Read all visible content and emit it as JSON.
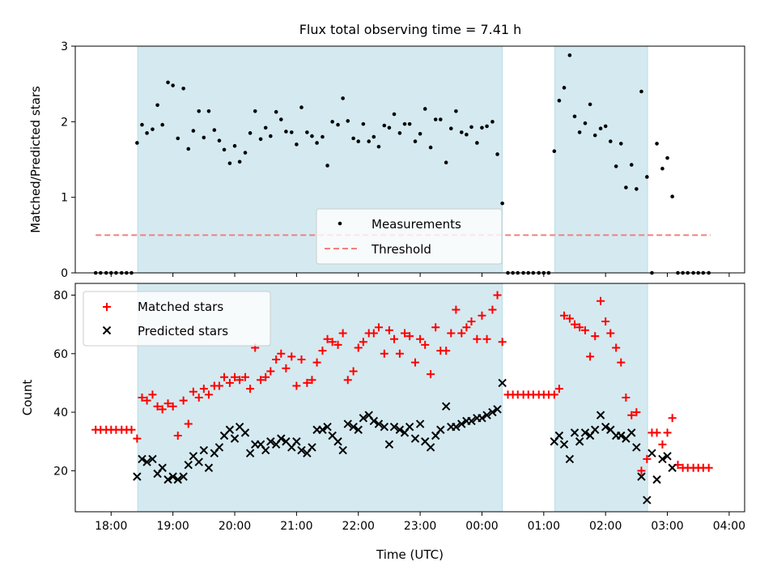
{
  "title": "Flux total observing time = 7.41 h",
  "colors": {
    "shade": "#d4eaf0",
    "shade_edge": "#b8dde6",
    "matched": "#ff0000",
    "predicted": "#000000",
    "threshold": "#f08080",
    "measurement": "#000000"
  },
  "chart_data": [
    {
      "type": "scatter",
      "ylabel": "Matched/Predicted stars",
      "ylim": [
        0,
        3
      ],
      "yticks": [
        0,
        1,
        2,
        3
      ],
      "xlim": [
        17.42,
        28.25
      ],
      "xticks": [
        18,
        19,
        20,
        21,
        22,
        23,
        24,
        25,
        26,
        27,
        28
      ],
      "shaded_regions": [
        [
          18.43,
          24.33
        ],
        [
          25.18,
          26.68
        ]
      ],
      "legend": {
        "position": "bottom-center",
        "entries": [
          "Measurements",
          "Threshold"
        ]
      },
      "threshold": {
        "name": "Threshold",
        "value": 0.5,
        "x_range": [
          17.75,
          27.7
        ]
      },
      "series": [
        {
          "name": "Measurements",
          "x": [
            17.75,
            17.83,
            17.92,
            18.0,
            18.08,
            18.17,
            18.25,
            18.33,
            18.42,
            18.5,
            18.58,
            18.67,
            18.75,
            18.83,
            18.92,
            19.0,
            19.08,
            19.17,
            19.25,
            19.33,
            19.42,
            19.5,
            19.58,
            19.67,
            19.75,
            19.83,
            19.92,
            20.0,
            20.08,
            20.17,
            20.25,
            20.33,
            20.42,
            20.5,
            20.58,
            20.67,
            20.75,
            20.83,
            20.92,
            21.0,
            21.08,
            21.17,
            21.25,
            21.33,
            21.42,
            21.5,
            21.58,
            21.67,
            21.75,
            21.83,
            21.92,
            22.0,
            22.08,
            22.17,
            22.25,
            22.33,
            22.42,
            22.5,
            22.58,
            22.67,
            22.75,
            22.83,
            22.92,
            23.0,
            23.08,
            23.17,
            23.25,
            23.33,
            23.42,
            23.5,
            23.58,
            23.67,
            23.75,
            23.83,
            23.92,
            24.0,
            24.08,
            24.17,
            24.25,
            24.33,
            24.42,
            24.5,
            24.58,
            24.67,
            24.75,
            24.83,
            24.92,
            25.0,
            25.08,
            25.17,
            25.25,
            25.33,
            25.42,
            25.5,
            25.58,
            25.67,
            25.75,
            25.83,
            25.92,
            26.0,
            26.08,
            26.17,
            26.25,
            26.33,
            26.42,
            26.5,
            26.58,
            26.67,
            26.75,
            26.83,
            26.92,
            27.0,
            27.08,
            27.17,
            27.25,
            27.33,
            27.42,
            27.5,
            27.58,
            27.67
          ],
          "y": [
            0,
            0,
            0,
            0,
            0,
            0,
            0,
            0,
            1.72,
            1.96,
            1.85,
            1.9,
            2.22,
            1.96,
            2.52,
            2.48,
            1.78,
            2.44,
            1.64,
            1.88,
            2.14,
            1.79,
            2.14,
            1.89,
            1.75,
            1.63,
            1.45,
            1.68,
            1.47,
            1.59,
            1.85,
            2.14,
            1.77,
            1.92,
            1.81,
            2.13,
            2.03,
            1.87,
            1.86,
            1.7,
            2.19,
            1.86,
            1.81,
            1.72,
            1.8,
            1.42,
            2.0,
            1.96,
            2.31,
            2.01,
            1.78,
            1.74,
            1.97,
            1.74,
            1.8,
            1.67,
            1.95,
            1.92,
            2.1,
            1.85,
            1.97,
            1.97,
            1.74,
            1.84,
            2.17,
            1.66,
            2.03,
            2.03,
            1.46,
            1.91,
            2.14,
            1.86,
            1.83,
            1.93,
            1.72,
            1.92,
            1.94,
            2.0,
            1.57,
            0.92,
            0,
            0,
            0,
            0,
            0,
            0,
            0,
            0,
            0,
            1.61,
            2.28,
            2.45,
            2.88,
            2.07,
            1.86,
            1.98,
            2.23,
            1.82,
            1.91,
            1.94,
            1.74,
            1.41,
            1.71,
            1.13,
            1.43,
            1.11,
            2.4,
            1.27,
            0,
            1.71,
            1.38,
            1.52,
            1.01,
            0,
            0,
            0,
            0,
            0,
            0,
            0
          ]
        }
      ]
    },
    {
      "type": "scatter",
      "xlabel": "Time (UTC)",
      "ylabel": "Count",
      "ylim": [
        6,
        84
      ],
      "yticks": [
        20,
        40,
        60,
        80
      ],
      "xlim": [
        17.42,
        28.25
      ],
      "xticks": [
        18,
        19,
        20,
        21,
        22,
        23,
        24,
        25,
        26,
        27,
        28
      ],
      "xtick_labels": [
        "18:00",
        "19:00",
        "20:00",
        "21:00",
        "22:00",
        "23:00",
        "00:00",
        "01:00",
        "02:00",
        "03:00",
        "04:00"
      ],
      "shaded_regions": [
        [
          18.43,
          24.33
        ],
        [
          25.18,
          26.68
        ]
      ],
      "legend": {
        "position": "top-left",
        "entries": [
          "Matched stars",
          "Predicted stars"
        ]
      },
      "series": [
        {
          "name": "Matched stars",
          "marker": "plus",
          "x": [
            17.75,
            17.83,
            17.92,
            18.0,
            18.08,
            18.17,
            18.25,
            18.33,
            18.42,
            18.5,
            18.58,
            18.67,
            18.75,
            18.83,
            18.92,
            19.0,
            19.08,
            19.17,
            19.25,
            19.33,
            19.42,
            19.5,
            19.58,
            19.67,
            19.75,
            19.83,
            19.92,
            20.0,
            20.08,
            20.17,
            20.25,
            20.33,
            20.42,
            20.5,
            20.58,
            20.67,
            20.75,
            20.83,
            20.92,
            21.0,
            21.08,
            21.17,
            21.25,
            21.33,
            21.42,
            21.5,
            21.58,
            21.67,
            21.75,
            21.83,
            21.92,
            22.0,
            22.08,
            22.17,
            22.25,
            22.33,
            22.42,
            22.5,
            22.58,
            22.67,
            22.75,
            22.83,
            22.92,
            23.0,
            23.08,
            23.17,
            23.25,
            23.33,
            23.42,
            23.5,
            23.58,
            23.67,
            23.75,
            23.83,
            23.92,
            24.0,
            24.08,
            24.17,
            24.25,
            24.33,
            24.42,
            24.5,
            24.58,
            24.67,
            24.75,
            24.83,
            24.92,
            25.0,
            25.08,
            25.17,
            25.25,
            25.33,
            25.42,
            25.5,
            25.58,
            25.67,
            25.75,
            25.83,
            25.92,
            26.0,
            26.08,
            26.17,
            26.25,
            26.33,
            26.42,
            26.5,
            26.58,
            26.67,
            26.75,
            26.83,
            26.92,
            27.0,
            27.08,
            27.17,
            27.25,
            27.33,
            27.42,
            27.5,
            27.58,
            27.67
          ],
          "y": [
            34,
            34,
            34,
            34,
            34,
            34,
            34,
            34,
            31,
            45,
            44,
            46,
            42,
            41,
            43,
            42,
            32,
            44,
            36,
            47,
            45,
            48,
            46,
            49,
            49,
            52,
            50,
            52,
            51,
            52,
            48,
            62,
            51,
            52,
            54,
            58,
            60,
            55,
            59,
            49,
            58,
            50,
            51,
            57,
            61,
            65,
            64,
            63,
            67,
            51,
            54,
            62,
            64,
            67,
            67,
            69,
            60,
            68,
            65,
            60,
            67,
            66,
            57,
            65,
            63,
            53,
            69,
            61,
            61,
            67,
            75,
            67,
            69,
            71,
            65,
            73,
            65,
            75,
            80,
            64,
            46,
            46,
            46,
            46,
            46,
            46,
            46,
            46,
            46,
            46,
            48,
            73,
            72,
            70,
            69,
            68,
            59,
            66,
            78,
            71,
            67,
            62,
            57,
            45,
            39,
            40,
            20,
            24,
            33,
            33,
            29,
            33,
            38,
            22,
            21,
            21,
            21,
            21,
            21,
            21
          ]
        },
        {
          "name": "Predicted stars",
          "marker": "x",
          "x": [
            18.42,
            18.5,
            18.58,
            18.67,
            18.75,
            18.83,
            18.92,
            19.0,
            19.08,
            19.17,
            19.25,
            19.33,
            19.42,
            19.5,
            19.58,
            19.67,
            19.75,
            19.83,
            19.92,
            20.0,
            20.08,
            20.17,
            20.25,
            20.33,
            20.42,
            20.5,
            20.58,
            20.67,
            20.75,
            20.83,
            20.92,
            21.0,
            21.08,
            21.17,
            21.25,
            21.33,
            21.42,
            21.5,
            21.58,
            21.67,
            21.75,
            21.83,
            21.92,
            22.0,
            22.08,
            22.17,
            22.25,
            22.33,
            22.42,
            22.5,
            22.58,
            22.67,
            22.75,
            22.83,
            22.92,
            23.0,
            23.08,
            23.17,
            23.25,
            23.33,
            23.42,
            23.5,
            23.58,
            23.67,
            23.75,
            23.83,
            23.92,
            24.0,
            24.08,
            24.17,
            24.25,
            24.33,
            25.17,
            25.25,
            25.33,
            25.42,
            25.5,
            25.58,
            25.67,
            25.75,
            25.83,
            25.92,
            26.0,
            26.08,
            26.17,
            26.25,
            26.33,
            26.42,
            26.5,
            26.58,
            26.67,
            26.75,
            26.83,
            26.92,
            27.0,
            27.08
          ],
          "y": [
            18,
            24,
            23,
            24,
            19,
            21,
            17,
            18,
            17,
            18,
            22,
            25,
            23,
            27,
            21,
            26,
            28,
            32,
            34,
            31,
            35,
            33,
            26,
            29,
            29,
            27,
            30,
            29,
            31,
            30,
            28,
            30,
            27,
            26,
            28,
            34,
            34,
            35,
            32,
            30,
            27,
            36,
            35,
            34,
            38,
            39,
            37,
            36,
            35,
            29,
            35,
            34,
            33,
            35,
            31,
            36,
            30,
            28,
            32,
            34,
            42,
            35,
            35,
            36,
            37,
            37,
            38,
            38,
            39,
            40,
            41,
            50,
            30,
            32,
            29,
            24,
            33,
            30,
            33,
            32,
            34,
            39,
            35,
            34,
            32,
            32,
            31,
            33,
            28,
            18,
            10,
            26,
            17,
            24,
            25,
            21
          ]
        }
      ]
    }
  ]
}
